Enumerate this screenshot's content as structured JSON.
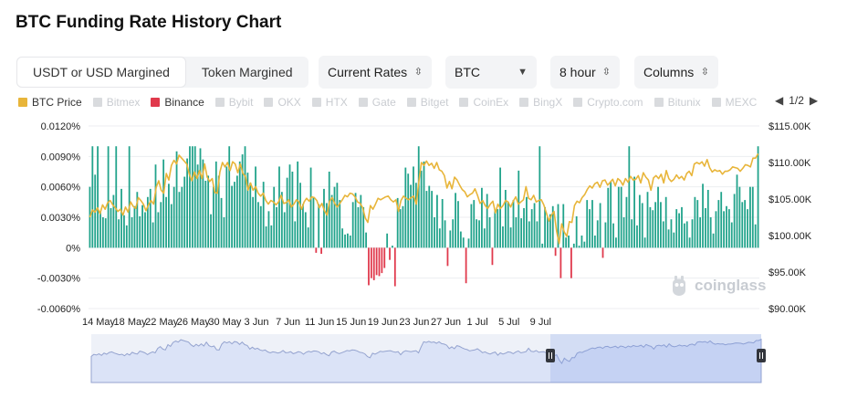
{
  "page": {
    "title": "BTC Funding Rate History Chart"
  },
  "controls": {
    "margin_tabs": [
      "USDT or USD Margined",
      "Token Margined"
    ],
    "rate_type": "Current Rates",
    "coin": "BTC",
    "interval": "8 hour",
    "view": "Columns"
  },
  "legend": {
    "items": [
      {
        "label": "BTC Price",
        "color": "#e8b53a",
        "active": true
      },
      {
        "label": "Bitmex",
        "color": "#d9dbde",
        "active": false
      },
      {
        "label": "Binance",
        "color": "#e0394c",
        "active": true
      },
      {
        "label": "Bybit",
        "color": "#d9dbde",
        "active": false
      },
      {
        "label": "OKX",
        "color": "#d9dbde",
        "active": false
      },
      {
        "label": "HTX",
        "color": "#d9dbde",
        "active": false
      },
      {
        "label": "Gate",
        "color": "#d9dbde",
        "active": false
      },
      {
        "label": "Bitget",
        "color": "#d9dbde",
        "active": false
      },
      {
        "label": "CoinEx",
        "color": "#d9dbde",
        "active": false
      },
      {
        "label": "BingX",
        "color": "#d9dbde",
        "active": false
      },
      {
        "label": "Crypto.com",
        "color": "#d9dbde",
        "active": false
      },
      {
        "label": "Bitunix",
        "color": "#d9dbde",
        "active": false
      },
      {
        "label": "MEXC",
        "color": "#d9dbde",
        "active": false
      }
    ],
    "page": "1/2"
  },
  "watermark": "coinglass",
  "colors": {
    "positive": "#21a38b",
    "negative": "#e0394c",
    "price": "#e8b53a",
    "grid": "#eceef1",
    "navigator": "#dbe3f7",
    "navigator_line": "#94a3cf"
  },
  "chart_data": {
    "type": "bar",
    "title": "BTC Funding Rate History Chart",
    "x_tick_labels": [
      "14 May",
      "18 May",
      "22 May",
      "26 May",
      "30 May",
      "3 Jun",
      "7 Jun",
      "11 Jun",
      "15 Jun",
      "19 Jun",
      "23 Jun",
      "27 Jun",
      "1 Jul",
      "5 Jul",
      "9 Jul"
    ],
    "y_left_ticks": [
      "0.0120%",
      "0.0090%",
      "0.0060%",
      "0.0030%",
      "0%",
      "-0.0030%",
      "-0.0060%"
    ],
    "y_left_range": [
      -0.006,
      0.012
    ],
    "y_right_ticks": [
      "$115.00K",
      "$110.00K",
      "$105.00K",
      "$100.00K",
      "$95.00K",
      "$90.00K"
    ],
    "y_right_range": [
      90000,
      115000
    ],
    "x_start_day": 0,
    "interval_days": 0.3333,
    "series": [
      {
        "name": "Binance",
        "unit": "%",
        "values": [
          0.006,
          0.01,
          0.0072,
          0.01,
          0.0035,
          0.003,
          0.0029,
          0.01,
          0.0039,
          0.0052,
          0.01,
          0.0028,
          0.0058,
          0.0032,
          0.0022,
          0.01,
          0.003,
          0.0041,
          0.0055,
          0.0031,
          0.0042,
          0.0035,
          0.005,
          0.0058,
          0.0025,
          0.0082,
          0.0035,
          0.0045,
          0.0087,
          0.005,
          0.0063,
          0.0043,
          0.006,
          0.0095,
          0.0055,
          0.006,
          0.007,
          0.0088,
          0.01,
          0.01,
          0.01,
          0.0082,
          0.0098,
          0.0087,
          0.0066,
          0.0071,
          0.0033,
          0.006,
          0.0085,
          0.0071,
          0.0049,
          0.003,
          0.008,
          0.01,
          0.0061,
          0.0065,
          0.0071,
          0.0085,
          0.0092,
          0.01,
          0.0074,
          0.0064,
          0.005,
          0.008,
          0.0045,
          0.0041,
          0.0065,
          0.0021,
          0.0036,
          0.0022,
          0.006,
          0.004,
          0.008,
          0.0055,
          0.0035,
          0.0069,
          0.0082,
          0.0075,
          0.0026,
          0.0085,
          0.0064,
          0.0043,
          0.0035,
          0.002,
          0.0079,
          0.005,
          -0.0005,
          0.0043,
          -0.0006,
          0.0058,
          0.0044,
          0.0075,
          0.0052,
          0.006,
          0.0064,
          0.0047,
          0.0019,
          0.0013,
          0.0014,
          0.0012,
          0.0045,
          0.0054,
          0.004,
          0.0052,
          0.004,
          0.0015,
          -0.0037,
          -0.003,
          -0.0032,
          -0.0027,
          -0.0028,
          -0.0025,
          -0.002,
          0.0014,
          -0.0012,
          0.0002,
          -0.0038,
          0.0049,
          0.0038,
          0.0041,
          0.0079,
          0.0073,
          0.0062,
          0.008,
          0.0064,
          0.01,
          0.0076,
          0.0085,
          0.0056,
          0.0061,
          0.0056,
          0.003,
          0.0052,
          0.0019,
          0.0048,
          0.0027,
          -0.0018,
          0.0017,
          0.0028,
          0.0054,
          0.0046,
          0.0016,
          0.001,
          -0.0035,
          0.0009,
          0.0043,
          0.0047,
          0.0028,
          0.0027,
          0.0059,
          0.0019,
          0.0053,
          0.003,
          -0.0017,
          0.0036,
          0.0038,
          0.0079,
          0.0021,
          0.0057,
          0.0045,
          0.002,
          0.0047,
          0.003,
          0.0076,
          0.0029,
          0.0039,
          0.005,
          0.0026,
          0.0038,
          0.0044,
          0.0026,
          0.01,
          0.0004,
          0.004,
          0.003,
          0.0033,
          0.0041,
          -0.0008,
          0.0043,
          -0.003,
          0.0043,
          0.001,
          0.0012,
          -0.003,
          0.0004,
          0.0031,
          0.0002,
          0.0012,
          0.0006,
          0.0047,
          0.0038,
          0.0047,
          0.0012,
          0.0027,
          0.0044,
          -0.001,
          0.0025,
          0.0059,
          0.0065,
          0.0024,
          0.001,
          0.006,
          0.006,
          0.003,
          0.005,
          0.01,
          0.0028,
          0.007,
          0.0022,
          0.0052,
          0.0044,
          0.001,
          0.0055,
          0.004,
          0.0037,
          0.0045,
          0.006,
          0.0045,
          0.0026,
          0.005,
          0.0018,
          0.0028,
          0.0015,
          0.0038,
          0.0034,
          0.004,
          0.0024,
          0.0026,
          0.001,
          0.0028,
          0.005,
          0.0047,
          0.003,
          0.0063,
          0.0039,
          0.0057,
          0.003,
          0.0014,
          0.0036,
          0.0047,
          0.0055,
          0.0036,
          0.0041,
          0.0038,
          0.0025,
          0.0053,
          0.0072,
          0.006,
          0.0045,
          0.0047,
          0.0038,
          0.006,
          0.006,
          0.0023,
          0.01
        ]
      },
      {
        "name": "BTC Price",
        "unit": "USD",
        "values": [
          102500,
          103500,
          103200,
          103800,
          103000,
          104200,
          103600,
          104500,
          104800,
          104200,
          103800,
          103300,
          103600,
          102800,
          103900,
          103200,
          104600,
          104000,
          103700,
          105200,
          104800,
          104300,
          103400,
          104200,
          104800,
          104300,
          106600,
          107500,
          106200,
          105800,
          108500,
          107600,
          109600,
          110300,
          109800,
          111000,
          110600,
          110200,
          109800,
          108400,
          107500,
          108700,
          107800,
          108900,
          107800,
          109800,
          108000,
          107400,
          107800,
          105900,
          105800,
          108700,
          110000,
          109400,
          110000,
          108900,
          110100,
          109800,
          108600,
          109800,
          108500,
          108100,
          106200,
          107200,
          106200,
          106700,
          105800,
          105400,
          105800,
          104800,
          104300,
          104800,
          104600,
          104200,
          104600,
          105500,
          104400,
          104500,
          104900,
          103900,
          104300,
          104900,
          104600,
          103600,
          104600,
          105100,
          104700,
          105300,
          105200,
          104800,
          103800,
          104400,
          103400,
          102800,
          104700,
          105200,
          104400,
          103900,
          104400,
          104900,
          105500,
          105300,
          105800,
          105700,
          105300,
          104600,
          104400,
          103800,
          102400,
          101800,
          104100,
          103600,
          104300,
          105100,
          104900,
          105100,
          105300,
          105400,
          104900,
          104600,
          104900,
          103300,
          104800,
          105400,
          105100,
          104900,
          105200,
          105400,
          104300,
          107400,
          110000,
          109600,
          110200,
          109600,
          109900,
          109200,
          110000,
          109000,
          108800,
          108200,
          106500,
          107400,
          106400,
          108000,
          107600,
          106900,
          106300,
          106000,
          105300,
          105600,
          105800,
          106400,
          105500,
          104400,
          104800,
          104100,
          103700,
          104300,
          104700,
          103100,
          104300,
          103700,
          104100,
          104800,
          104600,
          103900,
          104700,
          105300,
          104300,
          104600,
          104900,
          106700,
          105100,
          104900,
          105500,
          104600,
          104800,
          104900,
          104200,
          103100,
          102000,
          102800,
          103300,
          100600,
          98900,
          101600,
          100500,
          99900,
          101900,
          101800,
          104100,
          104700,
          104500,
          105200,
          105600,
          106300,
          106800,
          106500,
          107100,
          107300,
          106600,
          107500,
          107600,
          106900,
          107300,
          107700,
          106800,
          107800,
          107500,
          106900,
          107800,
          107300,
          108100,
          107600,
          107700,
          108200,
          107200,
          108600,
          108000,
          107600,
          106200,
          107900,
          108200,
          107800,
          108400,
          107200,
          108900,
          107800,
          107400,
          107700,
          108300,
          107800,
          108100,
          107600,
          108500,
          108800,
          108200,
          109800,
          110000,
          109800,
          110100,
          109500,
          110400,
          109300,
          108700,
          109000,
          108800,
          108900,
          108400,
          108800,
          108800,
          109000,
          109400,
          109300,
          109200,
          108800,
          109200,
          109700,
          109600,
          109400,
          110600,
          110600,
          111200
        ]
      }
    ],
    "xlabel": "",
    "ylabel": "",
    "legend_position": "top-left",
    "grid": true
  }
}
